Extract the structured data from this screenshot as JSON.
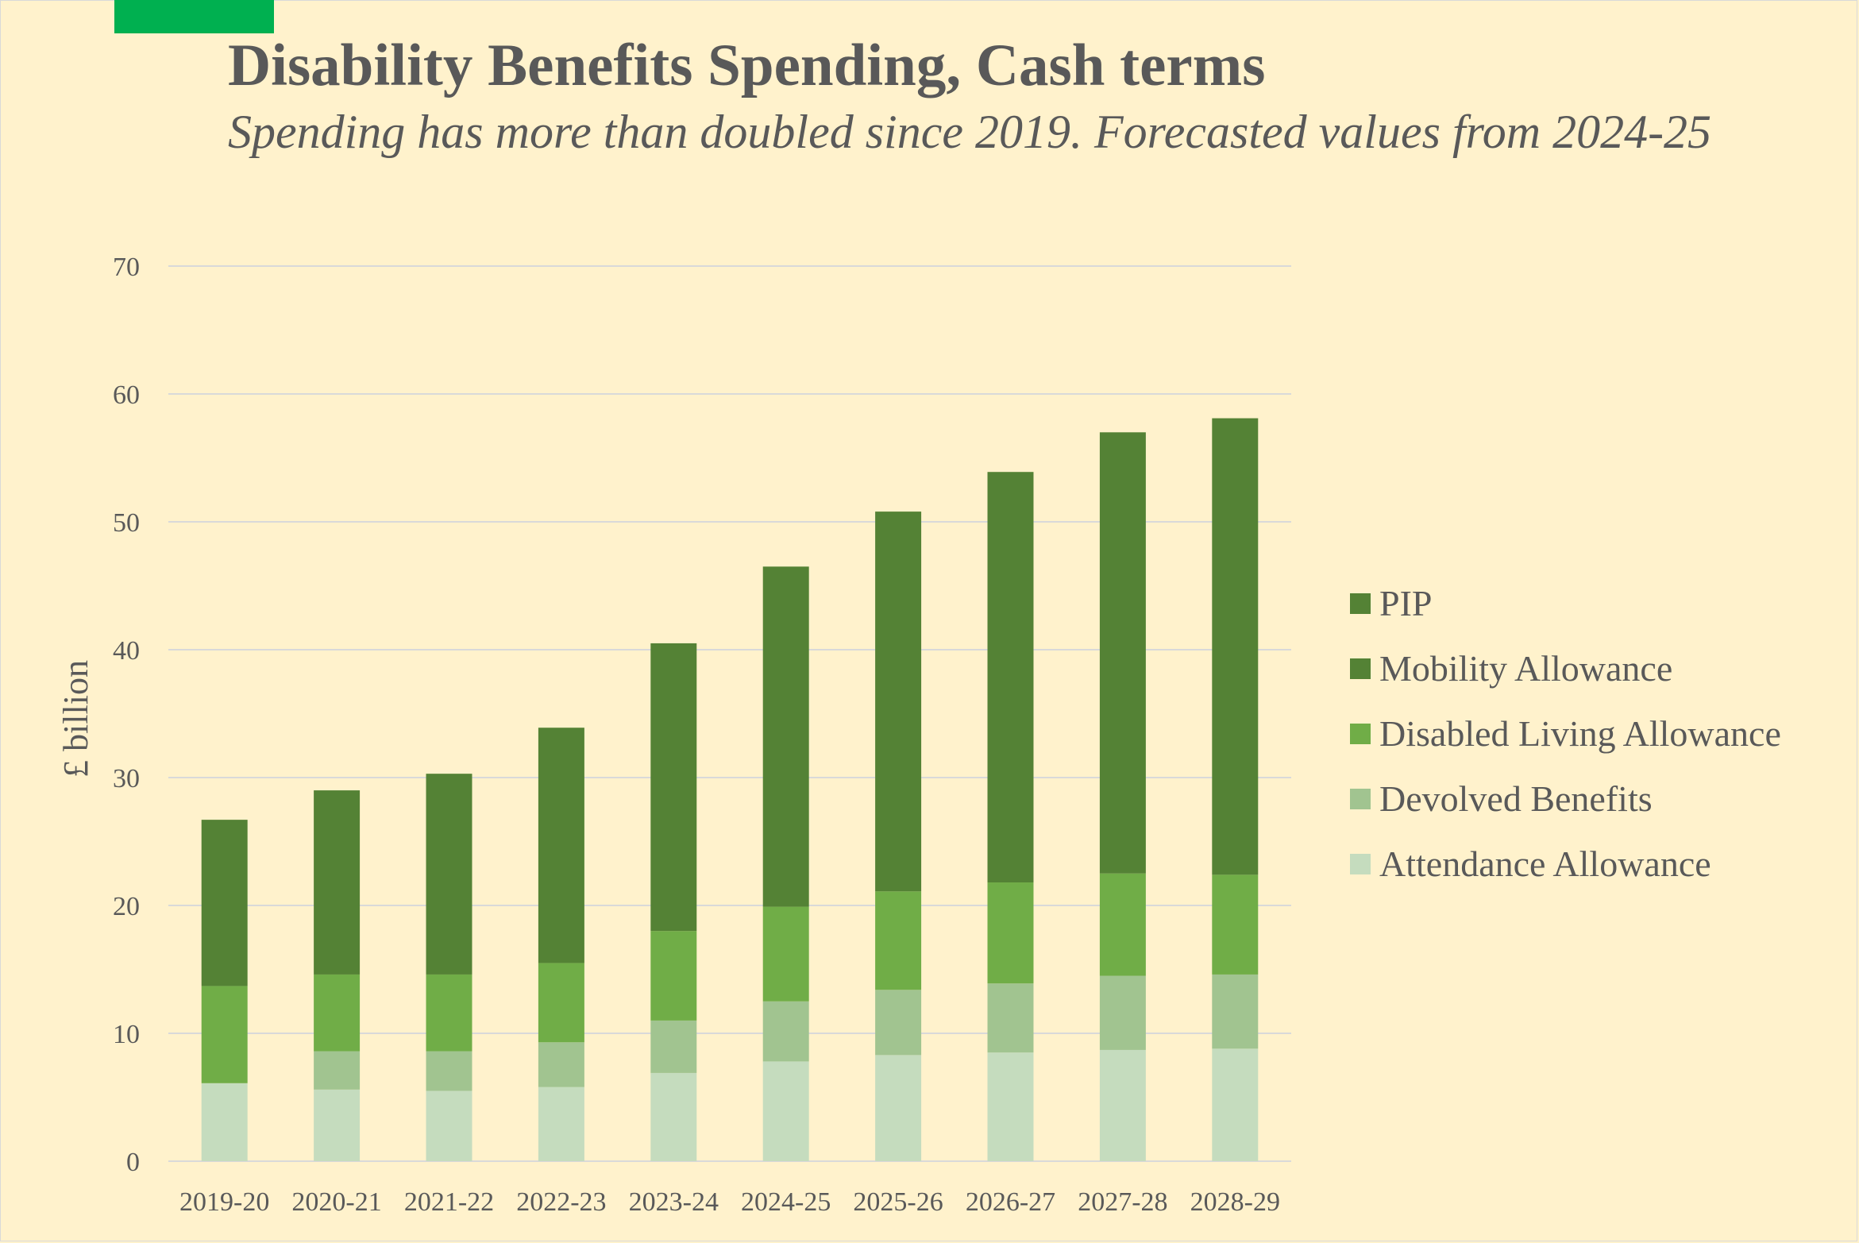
{
  "header": {
    "title": "Disability Benefits Spending, Cash terms",
    "subtitle": "Spending has more than doubled since 2019. Forecasted values from 2024-25",
    "accent_color": "#00B050"
  },
  "chart_data": {
    "type": "bar",
    "stacked": true,
    "title": "Disability Benefits Spending, Cash terms",
    "subtitle": "Spending has more than doubled since 2019. Forecasted values from 2024-25",
    "xlabel": "",
    "ylabel": "£ billion",
    "ylim": [
      0,
      70
    ],
    "yticks": [
      0,
      10,
      20,
      30,
      40,
      50,
      60,
      70
    ],
    "grid": true,
    "legend_position": "right",
    "categories": [
      "2019-20",
      "2020-21",
      "2021-22",
      "2022-23",
      "2023-24",
      "2024-25",
      "2025-26",
      "2026-27",
      "2027-28",
      "2028-29"
    ],
    "series": [
      {
        "name": "Attendance Allowance",
        "color": "#C5DCBE",
        "values": [
          6.1,
          5.6,
          5.5,
          5.8,
          6.9,
          7.8,
          8.3,
          8.5,
          8.7,
          8.8
        ]
      },
      {
        "name": "Devolved Benefits",
        "color": "#A1C490",
        "values": [
          0,
          3.0,
          3.1,
          3.5,
          4.1,
          4.7,
          5.1,
          5.4,
          5.8,
          5.8
        ]
      },
      {
        "name": "Disabled Living Allowance",
        "color": "#70AD47",
        "values": [
          7.6,
          6.0,
          6.0,
          6.2,
          7.0,
          7.4,
          7.7,
          7.9,
          8.0,
          7.8
        ]
      },
      {
        "name": "Mobility Allowance",
        "color": "#548235",
        "values": [
          0,
          0,
          0,
          0,
          0,
          0,
          0,
          0,
          0,
          0
        ]
      },
      {
        "name": "PIP",
        "color": "#548235",
        "values": [
          13.0,
          14.4,
          15.7,
          18.4,
          22.5,
          26.6,
          29.7,
          32.1,
          34.5,
          35.7
        ]
      }
    ],
    "legend_order": [
      "PIP",
      "Mobility Allowance",
      "Disabled Living Allowance",
      "Devolved Benefits",
      "Attendance Allowance"
    ]
  }
}
